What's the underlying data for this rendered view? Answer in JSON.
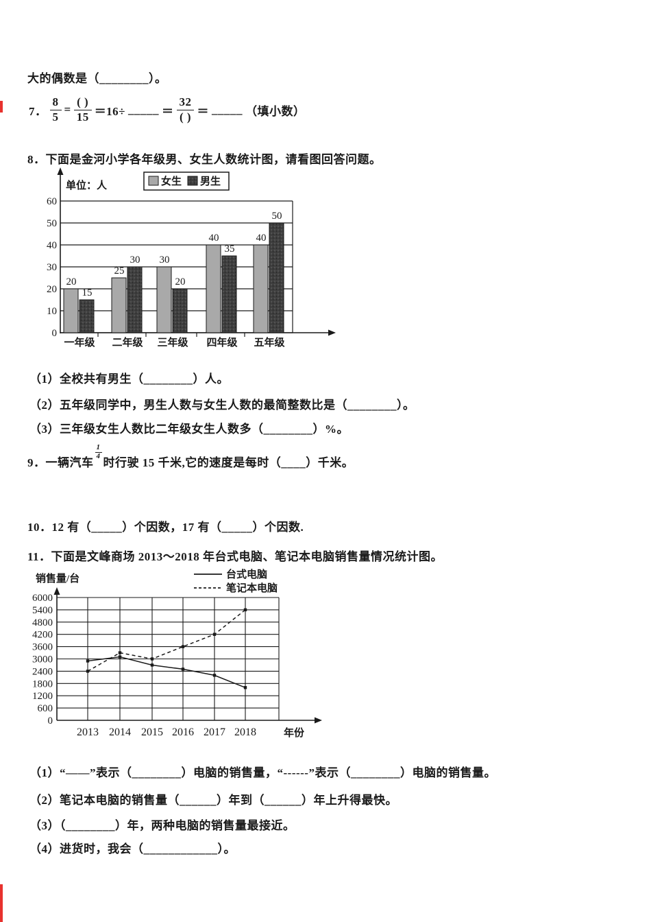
{
  "q6_tail": "大的偶数是（________）。",
  "q7": {
    "number": "7．",
    "frac1": {
      "num": "8",
      "den": "5"
    },
    "eq1": "=",
    "frac2": {
      "num": "( )",
      "den": "15"
    },
    "eq2": "＝16÷",
    "blank1": "_____",
    "eq3": "＝",
    "frac3": {
      "num": "32",
      "den": "( )"
    },
    "eq4": "＝",
    "blank2": "_____",
    "note": "（填小数）"
  },
  "q8": {
    "text": "8．下面是金河小学各年级男、女生人数统计图，请看图回答问题。",
    "subs": [
      "（1）全校共有男生（________）人。",
      "（2）五年级同学中，男生人数与女生人数的最简整数比是（________）。",
      "（3）三年级女生人数比二年级女生人数多（________）%。"
    ]
  },
  "q9": {
    "number": "9．",
    "pre": "一辆汽车",
    "frac": {
      "num": "1",
      "den": "4"
    },
    "post": "时行驶 15 千米,它的速度是每时（____）千米。"
  },
  "q10": "10．12 有（_____）个因数，17 有（_____）个因数.",
  "q11": {
    "text": "11．下面是文峰商场 2013～2018 年台式电脑、笔记本电脑销售量情况统计图。",
    "subs": [
      "（1）“——”表示（________）电脑的销售量，“------”表示（________）电脑的销售量。",
      "（2）笔记本电脑的销售量（______）年到（______）年上升得最快。",
      "（3）（________）年，两种电脑的销售量最接近。",
      "（4）进货时，我会（____________）。"
    ]
  },
  "chart_data": [
    {
      "type": "bar",
      "unit_label": "单位：人",
      "categories": [
        "一年级",
        "二年级",
        "三年级",
        "四年级",
        "五年级"
      ],
      "series": [
        {
          "name": "女生",
          "color": "#a9a9a9",
          "values": [
            20,
            25,
            30,
            40,
            40
          ]
        },
        {
          "name": "男生",
          "color": "#3f3f3f",
          "values": [
            15,
            30,
            20,
            35,
            50
          ]
        }
      ],
      "ylim": [
        0,
        60
      ],
      "yticks": [
        0,
        10,
        20,
        30,
        40,
        50,
        60
      ],
      "legend_position": "top-center",
      "grid": true
    },
    {
      "type": "line",
      "ylabel": "销售量/台",
      "xlabel": "年份",
      "x": [
        "2013",
        "2014",
        "2015",
        "2016",
        "2017",
        "2018"
      ],
      "series": [
        {
          "name": "台式电脑",
          "style": "solid",
          "values": [
            2900,
            3100,
            2700,
            2500,
            2200,
            1600
          ]
        },
        {
          "name": "笔记本电脑",
          "style": "dashed",
          "values": [
            2400,
            3300,
            3000,
            3600,
            4200,
            5400
          ]
        }
      ],
      "ylim": [
        0,
        6000
      ],
      "ytick_step": 600,
      "yticks": [
        0,
        600,
        1200,
        1800,
        2400,
        3000,
        3600,
        4200,
        4800,
        5400,
        6000
      ],
      "legend_position": "top-right",
      "grid": true
    }
  ],
  "colors": {
    "ink": "#1a1a1a",
    "girl_bar": "#a9a9a9",
    "boy_bar": "#3f3f3f",
    "red_mark": "#e8322e"
  }
}
